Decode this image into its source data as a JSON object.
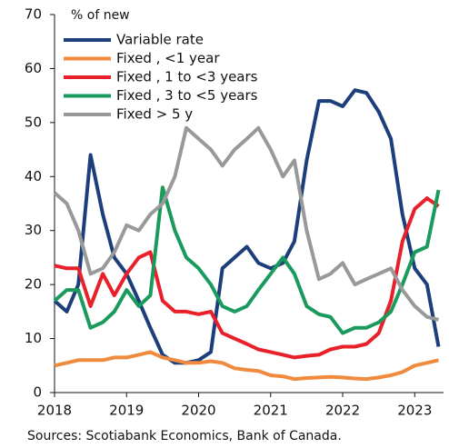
{
  "chart_data": {
    "type": "line",
    "y_axis_label": "% of new",
    "source": "Sources: Scotiabank Economics, Bank of Canada.",
    "x": [
      2018,
      2018.17,
      2018.33,
      2018.5,
      2018.67,
      2018.83,
      2019,
      2019.17,
      2019.33,
      2019.5,
      2019.67,
      2019.83,
      2020,
      2020.17,
      2020.33,
      2020.5,
      2020.67,
      2020.83,
      2021,
      2021.17,
      2021.33,
      2021.5,
      2021.67,
      2021.83,
      2022,
      2022.17,
      2022.33,
      2022.5,
      2022.67,
      2022.83,
      2023,
      2023.17,
      2023.33
    ],
    "series": [
      {
        "name": "Variable rate",
        "color": "#1c3f7c",
        "values": [
          17,
          15,
          20,
          44,
          33,
          25,
          22,
          17,
          12,
          7,
          5.5,
          5.5,
          6,
          7.5,
          23,
          25,
          27,
          24,
          23,
          24,
          28,
          43,
          54,
          54,
          53,
          56,
          55.5,
          52,
          47,
          33,
          23,
          20,
          8.5
        ]
      },
      {
        "name": "Fixed , <1 year",
        "color": "#f08a3c",
        "values": [
          5,
          5.5,
          6,
          6,
          6,
          6.5,
          6.5,
          7,
          7.5,
          6.5,
          6,
          5.5,
          5.5,
          5.8,
          5.5,
          4.5,
          4.2,
          4,
          3.2,
          3,
          2.5,
          2.7,
          2.8,
          2.9,
          2.8,
          2.6,
          2.5,
          2.8,
          3.2,
          3.8,
          5,
          5.5,
          6
        ]
      },
      {
        "name": "Fixed , 1 to <3 years",
        "color": "#e8202a",
        "values": [
          23.5,
          23,
          23,
          16,
          22,
          18,
          22,
          25,
          26,
          17,
          15,
          15,
          14.5,
          15,
          11,
          10,
          9,
          8,
          7.5,
          7,
          6.5,
          6.8,
          7,
          8,
          8.5,
          8.5,
          9,
          11,
          17,
          28,
          34,
          36,
          34.5
        ]
      },
      {
        "name": "Fixed , 3 to <5 years",
        "color": "#1a9a5c",
        "values": [
          17,
          19,
          19,
          12,
          13,
          15,
          19,
          16,
          18,
          38,
          30,
          25,
          23,
          20,
          16,
          15,
          16,
          19,
          22,
          25,
          22,
          16,
          14.5,
          14,
          11,
          12,
          12,
          13,
          15,
          20,
          26,
          27,
          37.5
        ]
      },
      {
        "name": "Fixed  > 5 y",
        "color": "#999999",
        "values": [
          37,
          35,
          30,
          22,
          23,
          26,
          31,
          30,
          33,
          35,
          40,
          49,
          47,
          45,
          42,
          45,
          47,
          49,
          45,
          40,
          43,
          30,
          21,
          22,
          24,
          20,
          21,
          22,
          23,
          19,
          16,
          14,
          13.5
        ]
      }
    ],
    "xlim": [
      2018,
      2023.4
    ],
    "xticks": [
      2018,
      2019,
      2020,
      2021,
      2022,
      2023
    ],
    "ylim": [
      0,
      70
    ],
    "yticks": [
      0,
      10,
      20,
      30,
      40,
      50,
      60,
      70
    ],
    "legend": "upper left"
  }
}
